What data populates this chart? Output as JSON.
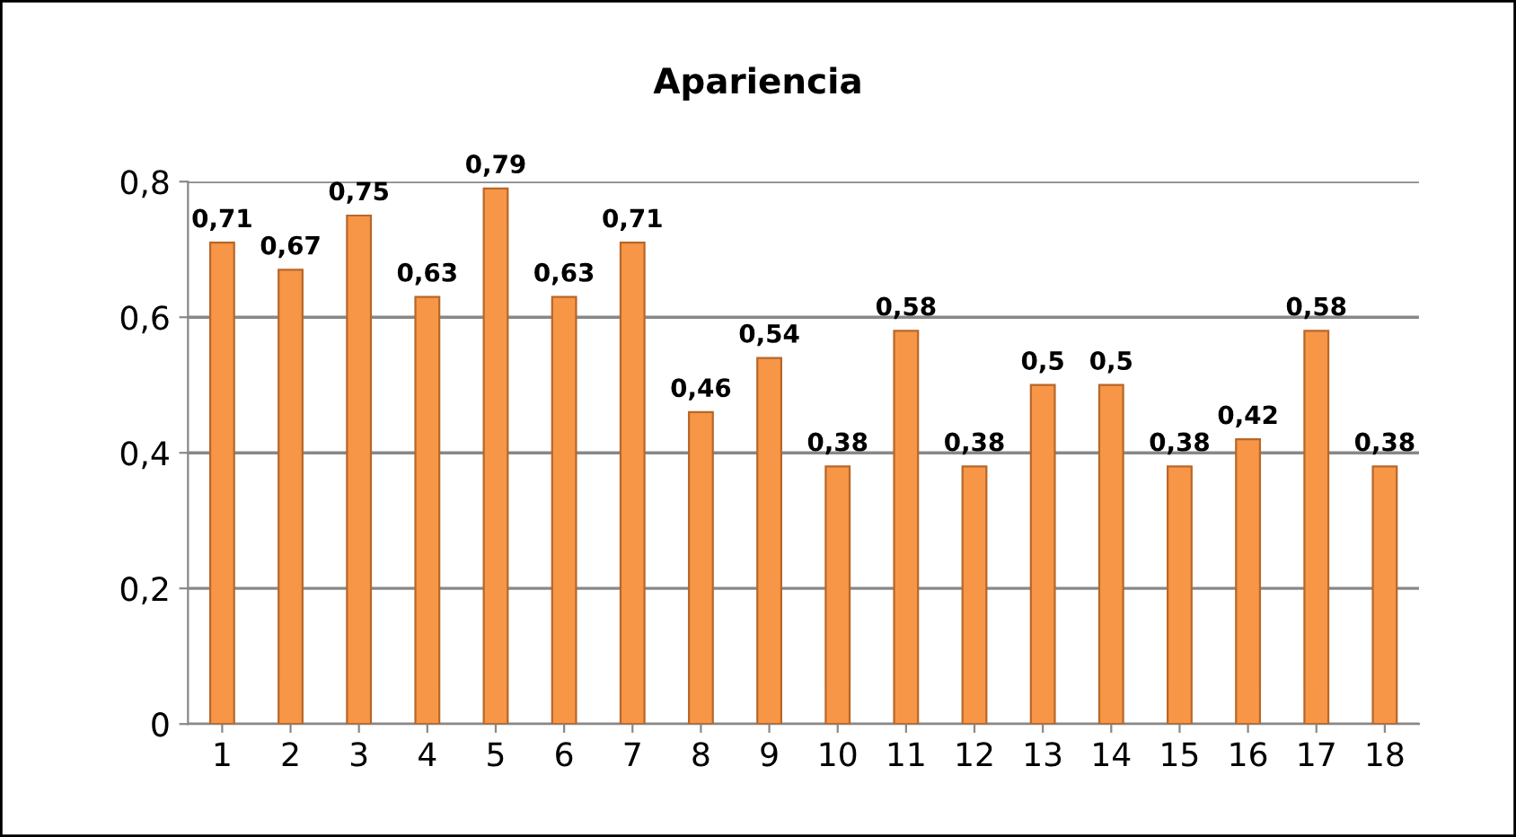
{
  "chart_data": {
    "type": "bar",
    "title": "Apariencia",
    "categories": [
      "1",
      "2",
      "3",
      "4",
      "5",
      "6",
      "7",
      "8",
      "9",
      "10",
      "11",
      "12",
      "13",
      "14",
      "15",
      "16",
      "17",
      "18"
    ],
    "values": [
      0.71,
      0.67,
      0.75,
      0.63,
      0.79,
      0.63,
      0.71,
      0.46,
      0.54,
      0.38,
      0.58,
      0.38,
      0.5,
      0.5,
      0.38,
      0.42,
      0.58,
      0.38
    ],
    "value_labels": [
      "0,71",
      "0,67",
      "0,75",
      "0,63",
      "0,79",
      "0,63",
      "0,71",
      "0,46",
      "0,54",
      "0,38",
      "0,58",
      "0,38",
      "0,5",
      "0,5",
      "0,38",
      "0,42",
      "0,58",
      "0,38"
    ],
    "color": "#f79646",
    "ylim": [
      0,
      0.8
    ],
    "yticks": [
      {
        "value": 0,
        "label": "0"
      },
      {
        "value": 0.2,
        "label": "0,2"
      },
      {
        "value": 0.4,
        "label": "0,4"
      },
      {
        "value": 0.6,
        "label": "0,6"
      },
      {
        "value": 0.8,
        "label": "0,8"
      }
    ],
    "grid": "y"
  }
}
